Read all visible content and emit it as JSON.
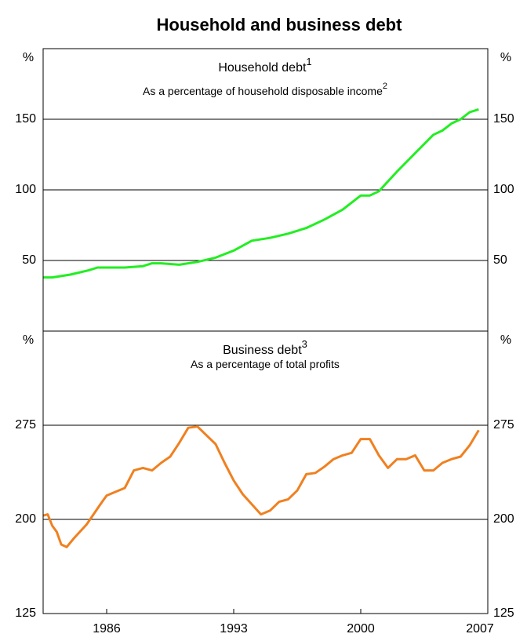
{
  "title": "Household and business debt",
  "chart_data": [
    {
      "type": "line",
      "title": "Household debt",
      "title_note": "1",
      "subtitle": "As a percentage of household disposable income",
      "subtitle_note": "2",
      "ylabel": "%",
      "ylim": [
        0,
        200
      ],
      "yticks": [
        50,
        100,
        150
      ],
      "xlim": [
        1982.5,
        2007
      ],
      "grid": true,
      "series": [
        {
          "name": "Household debt",
          "color": "#22ee22",
          "x": [
            1982.5,
            1983,
            1984,
            1985,
            1985.5,
            1986,
            1987,
            1988,
            1988.5,
            1989,
            1990,
            1991,
            1992,
            1993,
            1994,
            1995,
            1996,
            1997,
            1998,
            1999,
            2000,
            2000.5,
            2001,
            2002,
            2003,
            2004,
            2004.5,
            2005,
            2005.5,
            2006,
            2006.5
          ],
          "values": [
            38,
            38,
            40,
            43,
            45,
            45,
            45,
            46,
            48,
            48,
            47,
            49,
            52,
            57,
            64,
            66,
            69,
            73,
            79,
            86,
            96,
            96,
            99,
            113,
            126,
            139,
            142,
            147,
            150,
            155,
            157
          ]
        }
      ]
    },
    {
      "type": "line",
      "title": "Business debt",
      "title_note": "3",
      "subtitle": "As a percentage of total profits",
      "ylabel": "%",
      "ylim": [
        125,
        350
      ],
      "yticks": [
        125,
        200,
        275
      ],
      "xlim": [
        1982.5,
        2007
      ],
      "xticks": [
        1986,
        1993,
        2000,
        2007
      ],
      "grid": true,
      "series": [
        {
          "name": "Business debt",
          "color": "#f08020",
          "x": [
            1982.5,
            1982.75,
            1983,
            1983.25,
            1983.5,
            1983.8,
            1984.2,
            1984.9,
            1985.75,
            1986,
            1986.5,
            1987,
            1987.5,
            1988,
            1988.5,
            1989,
            1989.5,
            1990,
            1990.5,
            1991,
            1991.5,
            1992,
            1992.5,
            1993,
            1993.5,
            1994,
            1994.5,
            1995,
            1995.5,
            1996,
            1996.5,
            1997,
            1997.5,
            1998,
            1998.5,
            1999,
            1999.5,
            2000,
            2000.5,
            2001,
            2001.5,
            2002,
            2002.5,
            2003,
            2003.5,
            2004,
            2004.5,
            2005,
            2005.5,
            2006,
            2006.5
          ],
          "values": [
            203,
            204,
            195,
            190,
            180,
            178,
            185,
            196,
            214,
            219,
            222,
            225,
            239,
            241,
            239,
            245,
            250,
            261,
            273,
            274,
            267,
            260,
            245,
            231,
            220,
            212,
            204,
            207,
            214,
            216,
            223,
            236,
            237,
            242,
            248,
            251,
            253,
            264,
            264,
            251,
            241,
            248,
            248,
            251,
            239,
            239,
            245,
            248,
            250,
            259,
            271
          ]
        }
      ]
    }
  ]
}
